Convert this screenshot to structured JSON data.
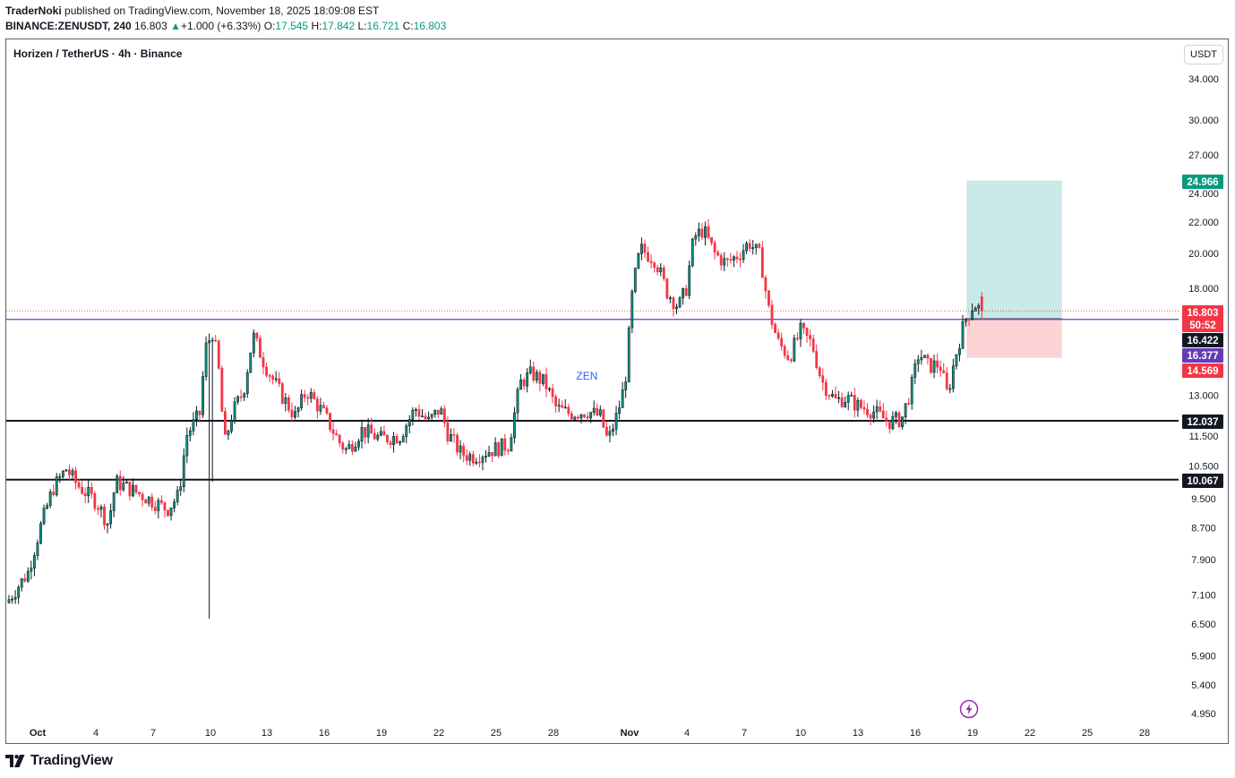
{
  "header": {
    "author": "TraderNoki",
    "published_text": " published on TradingView.com, November 18, 2025 18:09:08 EST",
    "symbol_line": "BINANCE:ZENUSDT, 240",
    "last": "16.803",
    "change": "+1.000 (+6.33%)",
    "o_label": "O:",
    "o_value": "17.545",
    "h_label": "H:",
    "h_value": "17.842",
    "l_label": "L:",
    "l_value": "16.721",
    "c_label": "C:",
    "c_value": "16.803"
  },
  "chart_title": "Horizen / TetherUS · 4h · Binance",
  "currency_button": "USDT",
  "footer": {
    "brand": "TradingView"
  },
  "colors": {
    "up": "#089981",
    "down": "#f23645",
    "candle_dark": "#131722",
    "purple_line": "#673ab7",
    "target_zone": "#b2dfdb",
    "stop_zone": "#fccbcd",
    "annotation": "#2962ff"
  },
  "chart_data": {
    "type": "candlestick",
    "title": "Horizen / TetherUS · 4h · Binance",
    "scale": "log",
    "ylim": [
      4.6,
      37.0
    ],
    "y_ticks": [
      "34.000",
      "30.000",
      "27.000",
      "24.000",
      "22.000",
      "20.000",
      "18.000",
      "13.000",
      "11.500",
      "10.500",
      "9.500",
      "8.700",
      "7.900",
      "7.100",
      "6.500",
      "5.900",
      "5.400",
      "4.950"
    ],
    "x_ticks": [
      "Oct",
      "4",
      "7",
      "10",
      "13",
      "16",
      "19",
      "22",
      "25",
      "28",
      "Nov",
      "4",
      "7",
      "10",
      "13",
      "16",
      "19",
      "22",
      "25",
      "28"
    ],
    "x_start": "2025-09-29",
    "interval_hours": 4,
    "price_labels": [
      {
        "name": "target",
        "text": "24.966",
        "value": 24.966,
        "color": "#089981"
      },
      {
        "name": "last-price",
        "text": "16.803",
        "value": 16.803,
        "color": "#f23645"
      },
      {
        "name": "countdown",
        "text": "50:52",
        "value": 16.6,
        "color": "#f23645"
      },
      {
        "name": "entry",
        "text": "16.422",
        "value": 16.422,
        "color": "#131722"
      },
      {
        "name": "purple-level",
        "text": "16.377",
        "value": 16.377,
        "color": "#673ab7"
      },
      {
        "name": "stop",
        "text": "14.569",
        "value": 14.569,
        "color": "#f23645"
      },
      {
        "name": "support-1",
        "text": "12.037",
        "value": 12.037,
        "color": "#131722"
      },
      {
        "name": "support-2",
        "text": "10.067",
        "value": 10.067,
        "color": "#131722"
      }
    ],
    "horizontal_lines": [
      {
        "name": "resistance-line",
        "value": 16.377,
        "color": "#673ab7"
      },
      {
        "name": "support-line-1",
        "value": 12.037,
        "color": "#131722"
      },
      {
        "name": "support-line-2",
        "value": 10.067,
        "color": "#131722"
      }
    ],
    "position": {
      "entry": 16.422,
      "target": 24.966,
      "stop": 14.569,
      "start_day": 50.2,
      "end_day": 55.2
    },
    "annotation": {
      "text": "ZEN",
      "day": 30.3,
      "value": 13.8
    },
    "anchor_closes": [
      [
        0,
        7.0
      ],
      [
        1,
        7.6
      ],
      [
        1.7,
        8.8
      ],
      [
        2.3,
        9.8
      ],
      [
        3,
        10.4
      ],
      [
        3.6,
        9.9
      ],
      [
        4.6,
        9.4
      ],
      [
        5.2,
        8.8
      ],
      [
        5.6,
        10.0
      ],
      [
        7,
        9.6
      ],
      [
        8.3,
        9.2
      ],
      [
        8.9,
        9.6
      ],
      [
        9.3,
        11.5
      ],
      [
        10,
        12.3
      ],
      [
        10.3,
        15.0
      ],
      [
        10.7,
        15.8
      ],
      [
        11.0,
        14.0
      ],
      [
        11.3,
        11.2
      ],
      [
        11.7,
        12.3
      ],
      [
        12.3,
        13.2
      ],
      [
        12.8,
        15.6
      ],
      [
        13.4,
        14.3
      ],
      [
        14.3,
        13.0
      ],
      [
        15,
        12.2
      ],
      [
        15.6,
        13.2
      ],
      [
        16.5,
        12.3
      ],
      [
        17.3,
        11.3
      ],
      [
        17.7,
        11.0
      ],
      [
        18.5,
        11.7
      ],
      [
        19.5,
        11.4
      ],
      [
        20.5,
        11.5
      ],
      [
        21.3,
        12.5
      ],
      [
        22,
        12.0
      ],
      [
        22.6,
        12.5
      ],
      [
        23,
        11.6
      ],
      [
        23.7,
        10.9
      ],
      [
        24.3,
        10.8
      ],
      [
        25.2,
        11.0
      ],
      [
        26.2,
        11.2
      ],
      [
        26.8,
        13.5
      ],
      [
        27.4,
        13.9
      ],
      [
        28.1,
        13.5
      ],
      [
        28.7,
        12.5
      ],
      [
        29.4,
        12.3
      ],
      [
        30.3,
        12.4
      ],
      [
        31,
        12.2
      ],
      [
        31.4,
        11.3
      ],
      [
        31.9,
        12.3
      ],
      [
        32.3,
        13.5
      ],
      [
        32.7,
        18.0
      ],
      [
        33.1,
        20.3
      ],
      [
        33.9,
        19.6
      ],
      [
        34.5,
        17.8
      ],
      [
        35.1,
        17.0
      ],
      [
        35.5,
        18.0
      ],
      [
        35.9,
        21.0
      ],
      [
        36.4,
        21.5
      ],
      [
        37,
        20.0
      ],
      [
        37.6,
        19.4
      ],
      [
        38.3,
        20.0
      ],
      [
        38.8,
        20.7
      ],
      [
        39.4,
        19.8
      ],
      [
        39.8,
        17.0
      ],
      [
        40.3,
        15.3
      ],
      [
        40.9,
        14.6
      ],
      [
        41.5,
        15.8
      ],
      [
        42.1,
        15.2
      ],
      [
        42.6,
        13.6
      ],
      [
        43.3,
        12.8
      ],
      [
        43.9,
        12.9
      ],
      [
        44.5,
        12.6
      ],
      [
        45.3,
        12.4
      ],
      [
        46.1,
        12.0
      ],
      [
        46.8,
        12.1
      ],
      [
        47.3,
        13.3
      ],
      [
        47.7,
        14.8
      ],
      [
        48.2,
        14.2
      ],
      [
        48.8,
        14.3
      ],
      [
        49.2,
        13.0
      ],
      [
        49.6,
        14.6
      ],
      [
        50.1,
        16.3
      ],
      [
        50.6,
        17.2
      ],
      [
        50.95,
        16.803
      ]
    ]
  }
}
